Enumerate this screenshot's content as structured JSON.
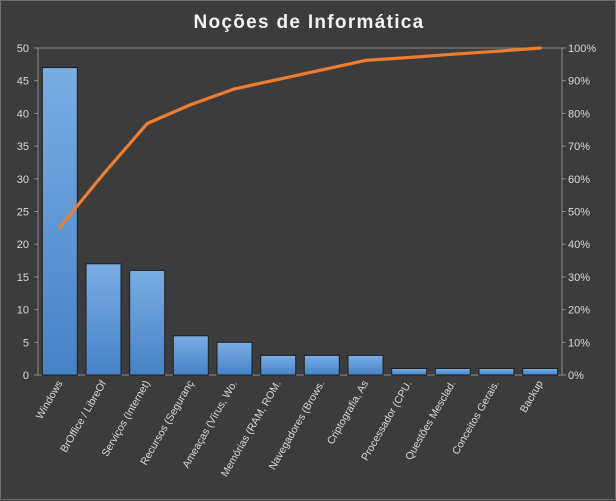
{
  "chart_data": {
    "type": "bar",
    "title": "Noções de Informática",
    "categories": [
      "Windows",
      "BrOffice / LibreOf",
      "Serviços (Internet)",
      "Recursos (Seguranç",
      "Ameaças (Vírus, Wo.",
      "Memórias (RAM, ROM.",
      "Navegadores (Brows.",
      "Criptografia, As",
      "Processador (CPU.",
      "Questões Mesclad.",
      "Conceitos Gerais.",
      "Backup"
    ],
    "series": [
      {
        "type": "bar",
        "axis": "left",
        "values": [
          47,
          17,
          16,
          6,
          5,
          3,
          3,
          3,
          1,
          1,
          1,
          1
        ]
      },
      {
        "type": "line",
        "axis": "right",
        "values": [
          45.2,
          61.5,
          76.9,
          82.7,
          87.5,
          90.4,
          93.3,
          96.2,
          97.1,
          98.1,
          99.0,
          100
        ]
      }
    ],
    "xlabel": "",
    "ylabel": "",
    "ylim": [
      0,
      50
    ],
    "yticks": [
      "0",
      "5",
      "10",
      "15",
      "20",
      "25",
      "30",
      "35",
      "40",
      "45",
      "50"
    ],
    "y2lim": [
      0,
      100
    ],
    "y2ticks": [
      "0%",
      "10%",
      "20%",
      "30%",
      "40%",
      "50%",
      "60%",
      "70%",
      "80%",
      "90%",
      "100%"
    ],
    "grid": false,
    "legend": "none",
    "colors": {
      "background": "#3c3c3c",
      "bar_top": "#79aee4",
      "bar_bottom": "#4682c6",
      "line": "#ed7d31",
      "axis": "#8c8c8c",
      "text": "#d9d9d9"
    }
  }
}
